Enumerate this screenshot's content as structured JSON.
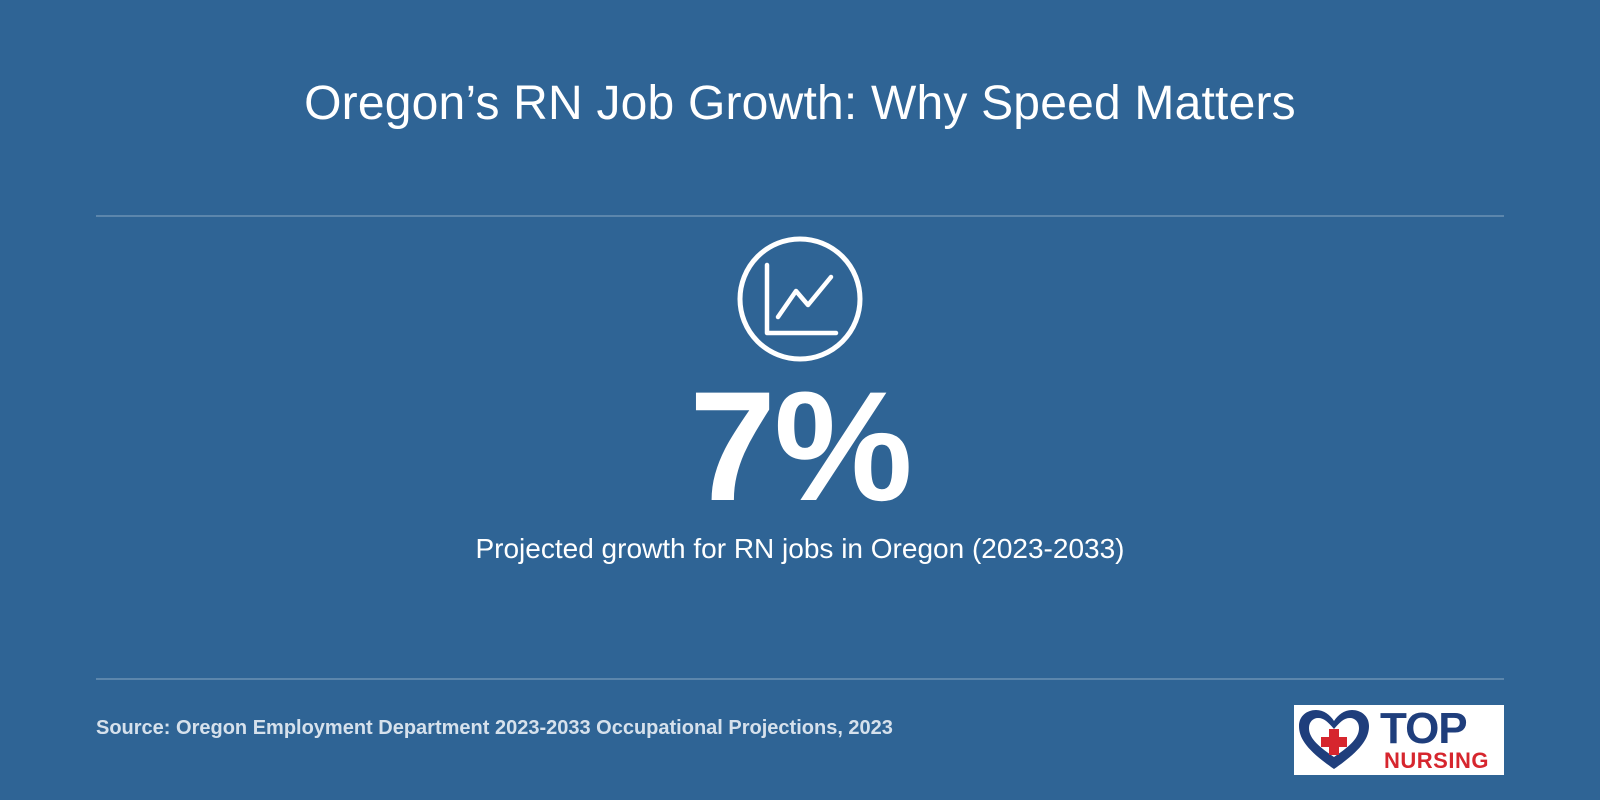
{
  "title": "Oregon’s RN Job Growth: Why Speed Matters",
  "stat": {
    "icon": "line-chart-icon",
    "value": "7%",
    "caption": "Projected growth for RN jobs in Oregon (2023-2033)"
  },
  "source": "Source: Oregon Employment Department 2023-2033 Occupational Projections, 2023",
  "logo": {
    "icon": "heart-cross-icon",
    "line1": "TOP",
    "line2": "NURSING"
  },
  "colors": {
    "background": "#2f6495",
    "text": "#ffffff",
    "source_text": "#d6e1ec",
    "logo_navy": "#1f3e7c",
    "logo_red": "#d6262e"
  }
}
